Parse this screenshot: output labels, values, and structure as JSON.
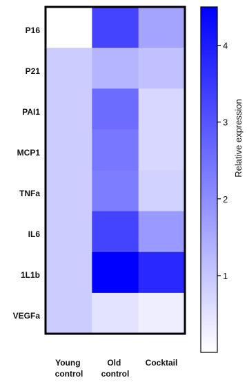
{
  "chart_data": {
    "type": "heatmap",
    "rows": [
      "P16",
      "P21",
      "PAI1",
      "MCP1",
      "TNFa",
      "IL6",
      "1L1b",
      "VEGFa"
    ],
    "columns": [
      [
        "Young",
        "control"
      ],
      [
        "Old",
        "control"
      ],
      [
        "Cocktail"
      ]
    ],
    "values": [
      [
        0.0,
        3.3,
        1.6
      ],
      [
        0.9,
        1.3,
        1.1
      ],
      [
        0.9,
        2.6,
        0.7
      ],
      [
        0.9,
        2.4,
        0.7
      ],
      [
        0.9,
        2.3,
        0.8
      ],
      [
        0.9,
        3.3,
        1.8
      ],
      [
        0.9,
        4.5,
        3.8
      ],
      [
        0.9,
        0.5,
        0.3
      ]
    ],
    "colorbar": {
      "label": "Relative expression",
      "ticks": [
        1,
        2,
        3,
        4
      ],
      "range": [
        0,
        4.5
      ],
      "low_color": "#ffffff",
      "high_color": "#0000ff"
    }
  }
}
